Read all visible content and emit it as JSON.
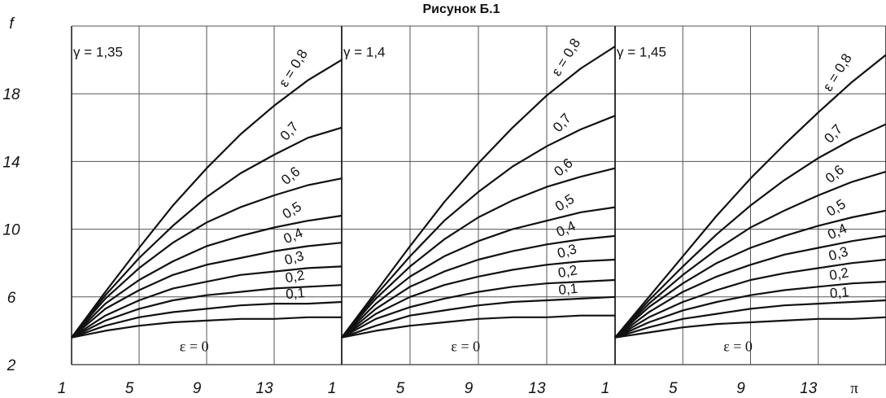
{
  "title": "Рисунок Б.1",
  "y_axis_label": "f",
  "x_axis_label": "π",
  "y_ticks": [
    "18",
    "14",
    "10",
    "6",
    "2"
  ],
  "x_ticks": [
    "1",
    "5",
    "9",
    "13",
    "1",
    "5",
    "9",
    "13",
    "1",
    "5",
    "9",
    "13"
  ],
  "chart_data": {
    "type": "line",
    "title": "Рисунок Б.1",
    "ylabel": "f",
    "xlabel": "π",
    "ylim": [
      2,
      22
    ],
    "xlim": [
      1,
      17
    ],
    "grid": true,
    "panels": [
      {
        "gamma_label": "γ = 1,35",
        "eps0_label": "ε = 0",
        "series": [
          {
            "name": "ε = 0,8",
            "label": "ε = 0,8",
            "x": [
              1,
              3,
              5,
              7,
              9,
              11,
              13,
              15,
              17
            ],
            "y": [
              3.6,
              6.3,
              8.9,
              11.4,
              13.6,
              15.6,
              17.3,
              18.8,
              20.0
            ]
          },
          {
            "name": "0,7",
            "label": "0,7",
            "x": [
              1,
              3,
              5,
              7,
              9,
              11,
              13,
              15,
              17
            ],
            "y": [
              3.6,
              6.1,
              8.3,
              10.2,
              11.9,
              13.3,
              14.4,
              15.4,
              16.0
            ]
          },
          {
            "name": "0,6",
            "label": "0,6",
            "x": [
              1,
              3,
              5,
              7,
              9,
              11,
              13,
              15,
              17
            ],
            "y": [
              3.6,
              5.9,
              7.7,
              9.2,
              10.4,
              11.3,
              12.0,
              12.6,
              13.0
            ]
          },
          {
            "name": "0,5",
            "label": "0,5",
            "x": [
              1,
              3,
              5,
              7,
              9,
              11,
              13,
              15,
              17
            ],
            "y": [
              3.6,
              5.6,
              7.0,
              8.1,
              9.0,
              9.6,
              10.1,
              10.5,
              10.8
            ]
          },
          {
            "name": "0,4",
            "label": "0,4",
            "x": [
              1,
              3,
              5,
              7,
              9,
              11,
              13,
              15,
              17
            ],
            "y": [
              3.6,
              5.3,
              6.4,
              7.3,
              7.9,
              8.3,
              8.7,
              9.0,
              9.2
            ]
          },
          {
            "name": "0,3",
            "label": "0,3",
            "x": [
              1,
              3,
              5,
              7,
              9,
              11,
              13,
              15,
              17
            ],
            "y": [
              3.6,
              4.9,
              5.8,
              6.5,
              6.9,
              7.3,
              7.5,
              7.7,
              7.8
            ]
          },
          {
            "name": "0,2",
            "label": "0,2",
            "x": [
              1,
              3,
              5,
              7,
              9,
              11,
              13,
              15,
              17
            ],
            "y": [
              3.6,
              4.6,
              5.3,
              5.8,
              6.1,
              6.3,
              6.5,
              6.6,
              6.7
            ]
          },
          {
            "name": "0,1",
            "label": "0,1",
            "x": [
              1,
              3,
              5,
              7,
              9,
              11,
              13,
              15,
              17
            ],
            "y": [
              3.6,
              4.3,
              4.8,
              5.1,
              5.3,
              5.5,
              5.6,
              5.6,
              5.7
            ]
          },
          {
            "name": "ε = 0",
            "label": "",
            "x": [
              1,
              3,
              5,
              7,
              9,
              11,
              13,
              15,
              17
            ],
            "y": [
              3.6,
              4.0,
              4.3,
              4.5,
              4.6,
              4.7,
              4.7,
              4.8,
              4.8
            ]
          }
        ]
      },
      {
        "gamma_label": "γ = 1,4",
        "eps0_label": "ε = 0",
        "series": [
          {
            "name": "ε = 0,8",
            "label": "ε = 0,8",
            "x": [
              1,
              3,
              5,
              7,
              9,
              11,
              13,
              15,
              17
            ],
            "y": [
              3.6,
              6.3,
              9.0,
              11.6,
              13.9,
              16.0,
              17.9,
              19.5,
              20.8
            ]
          },
          {
            "name": "0,7",
            "label": "0,7",
            "x": [
              1,
              3,
              5,
              7,
              9,
              11,
              13,
              15,
              17
            ],
            "y": [
              3.6,
              6.1,
              8.4,
              10.5,
              12.2,
              13.7,
              14.9,
              15.9,
              16.7
            ]
          },
          {
            "name": "0,6",
            "label": "0,6",
            "x": [
              1,
              3,
              5,
              7,
              9,
              11,
              13,
              15,
              17
            ],
            "y": [
              3.6,
              5.9,
              7.8,
              9.4,
              10.7,
              11.7,
              12.5,
              13.1,
              13.6
            ]
          },
          {
            "name": "0,5",
            "label": "0,5",
            "x": [
              1,
              3,
              5,
              7,
              9,
              11,
              13,
              15,
              17
            ],
            "y": [
              3.6,
              5.6,
              7.2,
              8.4,
              9.3,
              10.0,
              10.5,
              11.0,
              11.3
            ]
          },
          {
            "name": "0,4",
            "label": "0,4",
            "x": [
              1,
              3,
              5,
              7,
              9,
              11,
              13,
              15,
              17
            ],
            "y": [
              3.6,
              5.3,
              6.6,
              7.5,
              8.2,
              8.7,
              9.1,
              9.4,
              9.6
            ]
          },
          {
            "name": "0,3",
            "label": "0,3",
            "x": [
              1,
              3,
              5,
              7,
              9,
              11,
              13,
              15,
              17
            ],
            "y": [
              3.6,
              5.0,
              6.0,
              6.7,
              7.2,
              7.6,
              7.9,
              8.1,
              8.2
            ]
          },
          {
            "name": "0,2",
            "label": "0,2",
            "x": [
              1,
              3,
              5,
              7,
              9,
              11,
              13,
              15,
              17
            ],
            "y": [
              3.6,
              4.7,
              5.4,
              5.9,
              6.3,
              6.6,
              6.8,
              6.9,
              7.0
            ]
          },
          {
            "name": "0,1",
            "label": "0,1",
            "x": [
              1,
              3,
              5,
              7,
              9,
              11,
              13,
              15,
              17
            ],
            "y": [
              3.6,
              4.3,
              4.9,
              5.2,
              5.5,
              5.7,
              5.8,
              5.9,
              6.0
            ]
          },
          {
            "name": "ε = 0",
            "label": "",
            "x": [
              1,
              3,
              5,
              7,
              9,
              11,
              13,
              15,
              17
            ],
            "y": [
              3.6,
              4.0,
              4.3,
              4.5,
              4.7,
              4.8,
              4.8,
              4.9,
              4.9
            ]
          }
        ]
      },
      {
        "gamma_label": "γ = 1,45",
        "eps0_label": "ε = 0",
        "series": [
          {
            "name": "ε = 0,8",
            "label": "ε = 0,8",
            "x": [
              1,
              3,
              5,
              7,
              9,
              11,
              13,
              15,
              17
            ],
            "y": [
              3.6,
              6.0,
              8.4,
              10.8,
              13.0,
              15.0,
              16.9,
              18.7,
              20.3
            ]
          },
          {
            "name": "0,7",
            "label": "0,7",
            "x": [
              1,
              3,
              5,
              7,
              9,
              11,
              13,
              15,
              17
            ],
            "y": [
              3.6,
              5.8,
              7.8,
              9.7,
              11.4,
              12.9,
              14.2,
              15.3,
              16.2
            ]
          },
          {
            "name": "0,6",
            "label": "0,6",
            "x": [
              1,
              3,
              5,
              7,
              9,
              11,
              13,
              15,
              17
            ],
            "y": [
              3.6,
              5.6,
              7.3,
              8.8,
              10.1,
              11.1,
              12.0,
              12.8,
              13.4
            ]
          },
          {
            "name": "0,5",
            "label": "0,5",
            "x": [
              1,
              3,
              5,
              7,
              9,
              11,
              13,
              15,
              17
            ],
            "y": [
              3.6,
              5.4,
              6.8,
              8.0,
              8.9,
              9.6,
              10.2,
              10.7,
              11.1
            ]
          },
          {
            "name": "0,4",
            "label": "0,4",
            "x": [
              1,
              3,
              5,
              7,
              9,
              11,
              13,
              15,
              17
            ],
            "y": [
              3.6,
              5.1,
              6.3,
              7.2,
              7.9,
              8.5,
              8.9,
              9.3,
              9.6
            ]
          },
          {
            "name": "0,3",
            "label": "0,3",
            "x": [
              1,
              3,
              5,
              7,
              9,
              11,
              13,
              15,
              17
            ],
            "y": [
              3.6,
              4.8,
              5.7,
              6.4,
              7.0,
              7.4,
              7.7,
              8.0,
              8.2
            ]
          },
          {
            "name": "0,2",
            "label": "0,2",
            "x": [
              1,
              3,
              5,
              7,
              9,
              11,
              13,
              15,
              17
            ],
            "y": [
              3.6,
              4.5,
              5.2,
              5.7,
              6.1,
              6.4,
              6.6,
              6.8,
              6.9
            ]
          },
          {
            "name": "0,1",
            "label": "0,1",
            "x": [
              1,
              3,
              5,
              7,
              9,
              11,
              13,
              15,
              17
            ],
            "y": [
              3.6,
              4.2,
              4.7,
              5.0,
              5.3,
              5.5,
              5.6,
              5.7,
              5.8
            ]
          },
          {
            "name": "ε = 0",
            "label": "",
            "x": [
              1,
              3,
              5,
              7,
              9,
              11,
              13,
              15,
              17
            ],
            "y": [
              3.6,
              3.9,
              4.2,
              4.4,
              4.5,
              4.6,
              4.7,
              4.7,
              4.8
            ]
          }
        ]
      }
    ]
  }
}
